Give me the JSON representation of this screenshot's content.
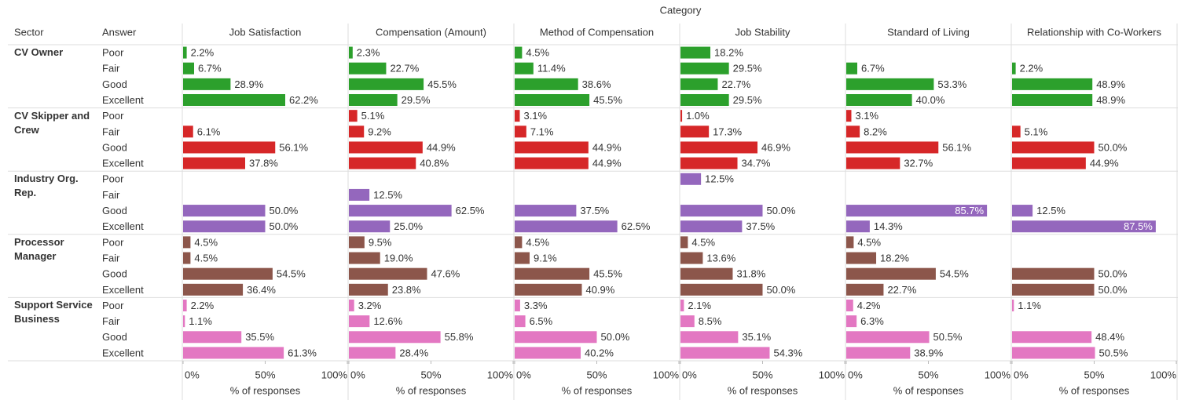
{
  "chart_data": {
    "type": "bar",
    "column_header": "Category",
    "row_headers": [
      "Sector",
      "Answer"
    ],
    "categories": [
      "Job Satisfaction",
      "Compensation (Amount)",
      "Method of Compensation",
      "Job Stability",
      "Standard of Living",
      "Relationship with Co-Workers"
    ],
    "answers": [
      "Poor",
      "Fair",
      "Good",
      "Excellent"
    ],
    "xlim": [
      0,
      100
    ],
    "xticks": [
      {
        "value": 0,
        "label": "0%"
      },
      {
        "value": 50,
        "label": "50%"
      },
      {
        "value": 100,
        "label": "100%"
      }
    ],
    "xlabel": "% of responses",
    "series": [
      {
        "name": "CV Owner",
        "color": "#2ca02c",
        "values": [
          [
            2.2,
            2.3,
            4.5,
            18.2,
            null,
            null
          ],
          [
            6.7,
            22.7,
            11.4,
            29.5,
            6.7,
            2.2
          ],
          [
            28.9,
            45.5,
            38.6,
            22.7,
            53.3,
            48.9
          ],
          [
            62.2,
            29.5,
            45.5,
            29.5,
            40.0,
            48.9
          ]
        ],
        "value_labels": [
          [
            "2.2%",
            "2.3%",
            "4.5%",
            "18.2%",
            null,
            null
          ],
          [
            "6.7%",
            "22.7%",
            "11.4%",
            "29.5%",
            "6.7%",
            "2.2%"
          ],
          [
            "28.9%",
            "45.5%",
            "38.6%",
            "22.7%",
            "53.3%",
            "48.9%"
          ],
          [
            "62.2%",
            "29.5%",
            "45.5%",
            "29.5%",
            "40.0%",
            "48.9%"
          ]
        ]
      },
      {
        "name": "CV Skipper and Crew",
        "color": "#d62728",
        "values": [
          [
            null,
            5.1,
            3.1,
            1.0,
            3.1,
            null
          ],
          [
            6.1,
            9.2,
            7.1,
            17.3,
            8.2,
            5.1
          ],
          [
            56.1,
            44.9,
            44.9,
            46.9,
            56.1,
            50.0
          ],
          [
            37.8,
            40.8,
            44.9,
            34.7,
            32.7,
            44.9
          ]
        ],
        "value_labels": [
          [
            null,
            "5.1%",
            "3.1%",
            "1.0%",
            "3.1%",
            null
          ],
          [
            "6.1%",
            "9.2%",
            "7.1%",
            "17.3%",
            "8.2%",
            "5.1%"
          ],
          [
            "56.1%",
            "44.9%",
            "44.9%",
            "46.9%",
            "56.1%",
            "50.0%"
          ],
          [
            "37.8%",
            "40.8%",
            "44.9%",
            "34.7%",
            "32.7%",
            "44.9%"
          ]
        ]
      },
      {
        "name": "Industry Org. Rep.",
        "color": "#9467bd",
        "values": [
          [
            null,
            null,
            null,
            12.5,
            null,
            null
          ],
          [
            null,
            12.5,
            null,
            null,
            null,
            null
          ],
          [
            50.0,
            62.5,
            37.5,
            50.0,
            85.7,
            12.5
          ],
          [
            50.0,
            25.0,
            62.5,
            37.5,
            14.3,
            87.5
          ]
        ],
        "value_labels": [
          [
            null,
            null,
            null,
            "12.5%",
            null,
            null
          ],
          [
            null,
            "12.5%",
            null,
            null,
            null,
            null
          ],
          [
            "50.0%",
            "62.5%",
            "37.5%",
            "50.0%",
            "85.7%",
            "12.5%"
          ],
          [
            "50.0%",
            "25.0%",
            "62.5%",
            "37.5%",
            "14.3%",
            "87.5%"
          ]
        ]
      },
      {
        "name": "Processor Manager",
        "color": "#8c564b",
        "values": [
          [
            4.5,
            9.5,
            4.5,
            4.5,
            4.5,
            null
          ],
          [
            4.5,
            19.0,
            9.1,
            13.6,
            18.2,
            null
          ],
          [
            54.5,
            47.6,
            45.5,
            31.8,
            54.5,
            50.0
          ],
          [
            36.4,
            23.8,
            40.9,
            50.0,
            22.7,
            50.0
          ]
        ],
        "value_labels": [
          [
            "4.5%",
            "9.5%",
            "4.5%",
            "4.5%",
            "4.5%",
            null
          ],
          [
            "4.5%",
            "19.0%",
            "9.1%",
            "13.6%",
            "18.2%",
            null
          ],
          [
            "54.5%",
            "47.6%",
            "45.5%",
            "31.8%",
            "54.5%",
            "50.0%"
          ],
          [
            "36.4%",
            "23.8%",
            "40.9%",
            "50.0%",
            "22.7%",
            "50.0%"
          ]
        ]
      },
      {
        "name": "Support Service Business",
        "color": "#e377c2",
        "values": [
          [
            2.2,
            3.2,
            3.3,
            2.1,
            4.2,
            1.1
          ],
          [
            1.1,
            12.6,
            6.5,
            8.5,
            6.3,
            null
          ],
          [
            35.5,
            55.8,
            50.0,
            35.1,
            50.5,
            48.4
          ],
          [
            61.3,
            28.4,
            40.2,
            54.3,
            38.9,
            50.5
          ]
        ],
        "value_labels": [
          [
            "2.2%",
            "3.2%",
            "3.3%",
            "2.1%",
            "4.2%",
            "1.1%"
          ],
          [
            "1.1%",
            "12.6%",
            "6.5%",
            "8.5%",
            "6.3%",
            null
          ],
          [
            "35.5%",
            "55.8%",
            "50.0%",
            "35.1%",
            "50.5%",
            "48.4%"
          ],
          [
            "61.3%",
            "28.4%",
            "40.2%",
            "54.3%",
            "38.9%",
            "50.5%"
          ]
        ]
      }
    ]
  }
}
